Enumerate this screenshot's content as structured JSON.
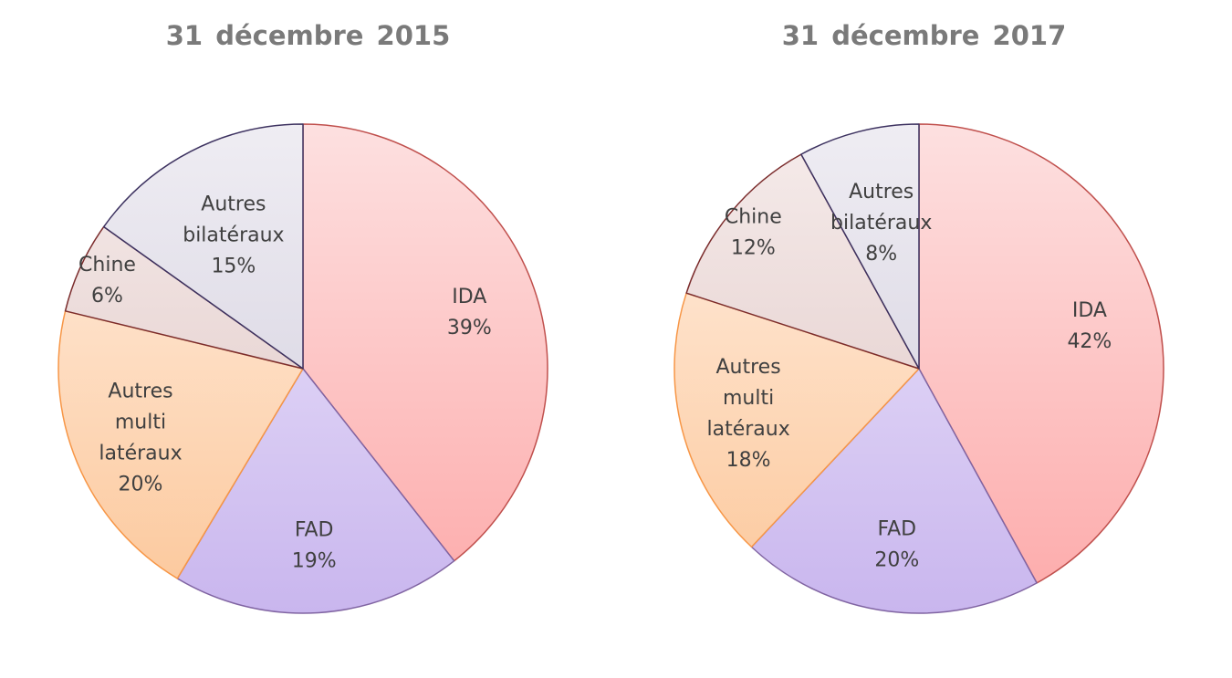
{
  "chart_data": [
    {
      "type": "pie",
      "title": "31 décembre 2015",
      "slices": [
        {
          "label_lines": [
            "IDA"
          ],
          "value": 39,
          "value_label": "39%",
          "color": "#fdaaaa",
          "color_light": "#fde0e0",
          "border": "#c0504d"
        },
        {
          "label_lines": [
            "FAD"
          ],
          "value": 19,
          "value_label": "19%",
          "color": "#c9b6ee",
          "color_light": "#efe9fb",
          "border": "#8064a2"
        },
        {
          "label_lines": [
            "Autres",
            "multi",
            "latéraux"
          ],
          "value": 20,
          "value_label": "20%",
          "color": "#fcc79a",
          "color_light": "#fff0e4",
          "border": "#f79646"
        },
        {
          "label_lines": [
            "Chine"
          ],
          "value": 6,
          "value_label": "6%",
          "color": "#ddc3c1",
          "color_light": "#f6eceb",
          "border": "#7b2c2c"
        },
        {
          "label_lines": [
            "Autres",
            "bilatéraux"
          ],
          "value": 15,
          "value_label": "15%",
          "color": "#cfcbdb",
          "color_light": "#efedf3",
          "border": "#3d3260"
        }
      ]
    },
    {
      "type": "pie",
      "title": "31 décembre 2017",
      "slices": [
        {
          "label_lines": [
            "IDA"
          ],
          "value": 42,
          "value_label": "42%",
          "color": "#fdaaaa",
          "color_light": "#fde0e0",
          "border": "#c0504d"
        },
        {
          "label_lines": [
            "FAD"
          ],
          "value": 20,
          "value_label": "20%",
          "color": "#c9b6ee",
          "color_light": "#efe9fb",
          "border": "#8064a2"
        },
        {
          "label_lines": [
            "Autres",
            "multi",
            "latéraux"
          ],
          "value": 18,
          "value_label": "18%",
          "color": "#fcc79a",
          "color_light": "#fff0e4",
          "border": "#f79646"
        },
        {
          "label_lines": [
            "Chine"
          ],
          "value": 12,
          "value_label": "12%",
          "color": "#ddc3c1",
          "color_light": "#f6eceb",
          "border": "#7b2c2c"
        },
        {
          "label_lines": [
            "Autres",
            "bilatéraux"
          ],
          "value": 8,
          "value_label": "8%",
          "color": "#cfcbdb",
          "color_light": "#efedf3",
          "border": "#3d3260"
        }
      ]
    }
  ]
}
